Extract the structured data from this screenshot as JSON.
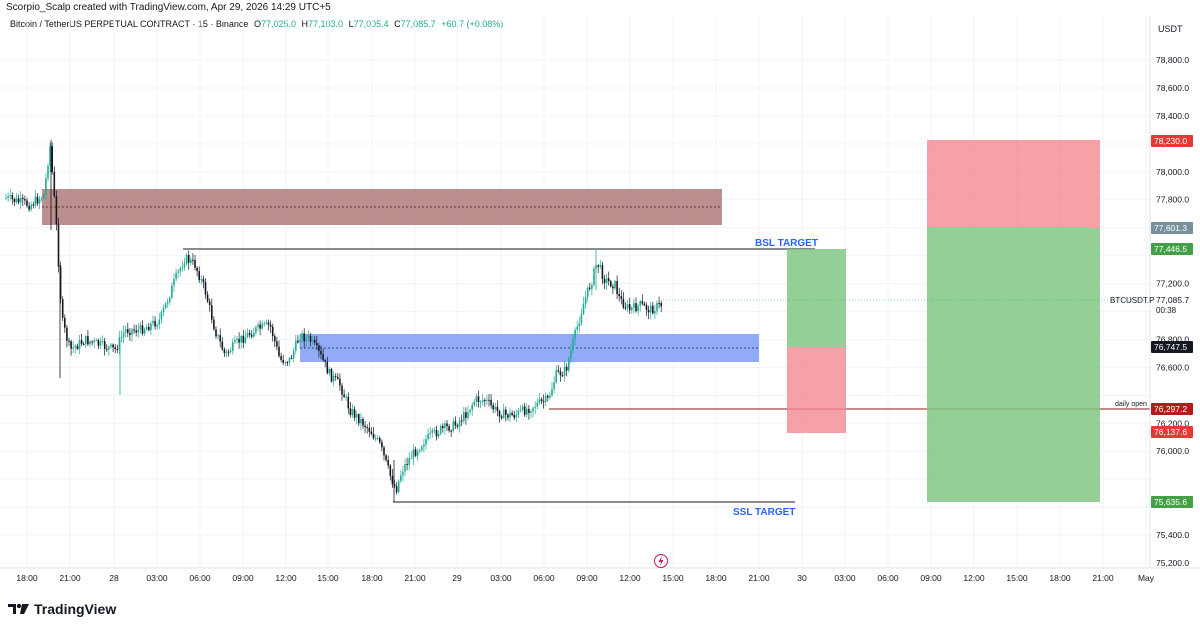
{
  "header": {
    "author_line": "Scorpio_Scalp created with TradingView.com, Apr 29, 2026 14:29 UTC+5"
  },
  "symbol": {
    "name": "Bitcoin / TetherUS PERPETUAL CONTRACT · 15 · Binance",
    "o_label": "O",
    "o": "77,025.0",
    "h_label": "H",
    "h": "77,103.0",
    "l_label": "L",
    "l": "77,005.4",
    "c_label": "C",
    "c": "77,085.7",
    "change": "+60.7 (+0.08%)"
  },
  "price_axis": {
    "currency": "USDT",
    "ticks": [
      "78,800.0",
      "78,600.0",
      "78,400.0",
      "78,000.0",
      "77,800.0",
      "77,200.0",
      "76,800.0",
      "76,600.0",
      "76,200.0",
      "76,000.0",
      "75,400.0",
      "75,200.0"
    ],
    "badges": [
      {
        "text": "78,230.0",
        "bg": "#e53935",
        "fg": "#ffffff"
      },
      {
        "text": "77,601.3",
        "bg": "#78909c",
        "fg": "#ffffff"
      },
      {
        "text": "77,446.5",
        "bg": "#43a047",
        "fg": "#ffffff"
      },
      {
        "text": "76,747.5",
        "bg": "#131722",
        "fg": "#ffffff"
      },
      {
        "text": "76,297.2",
        "bg": "#b71c1c",
        "fg": "#ffffff"
      },
      {
        "text": "76,137.6",
        "bg": "#e53935",
        "fg": "#ffffff"
      },
      {
        "text": "75,635.6",
        "bg": "#43a047",
        "fg": "#ffffff"
      }
    ],
    "current_symbol": "BTCUSDT.P",
    "current_price": "77,085.7",
    "countdown": "00:38"
  },
  "time_axis": {
    "ticks": [
      "18:00",
      "21:00",
      "28",
      "03:00",
      "06:00",
      "09:00",
      "12:00",
      "15:00",
      "18:00",
      "21:00",
      "29",
      "03:00",
      "06:00",
      "09:00",
      "12:00",
      "15:00",
      "18:00",
      "21:00",
      "30",
      "03:00",
      "06:00",
      "09:00",
      "12:00",
      "15:00",
      "18:00",
      "21:00",
      "May"
    ]
  },
  "annotations": {
    "bsl": "BSL TARGET",
    "ssl": "SSL TARGET",
    "daily_open": "daily open"
  },
  "colors": {
    "up": "#22ab94",
    "down": "#131722",
    "supply_zone": "#a56a6a",
    "demand_zone": "#7f9cf5",
    "target_green": "#81c784",
    "target_red": "#f48892",
    "label_blue": "#2962ff"
  },
  "footer": {
    "brand": "TradingView"
  }
}
